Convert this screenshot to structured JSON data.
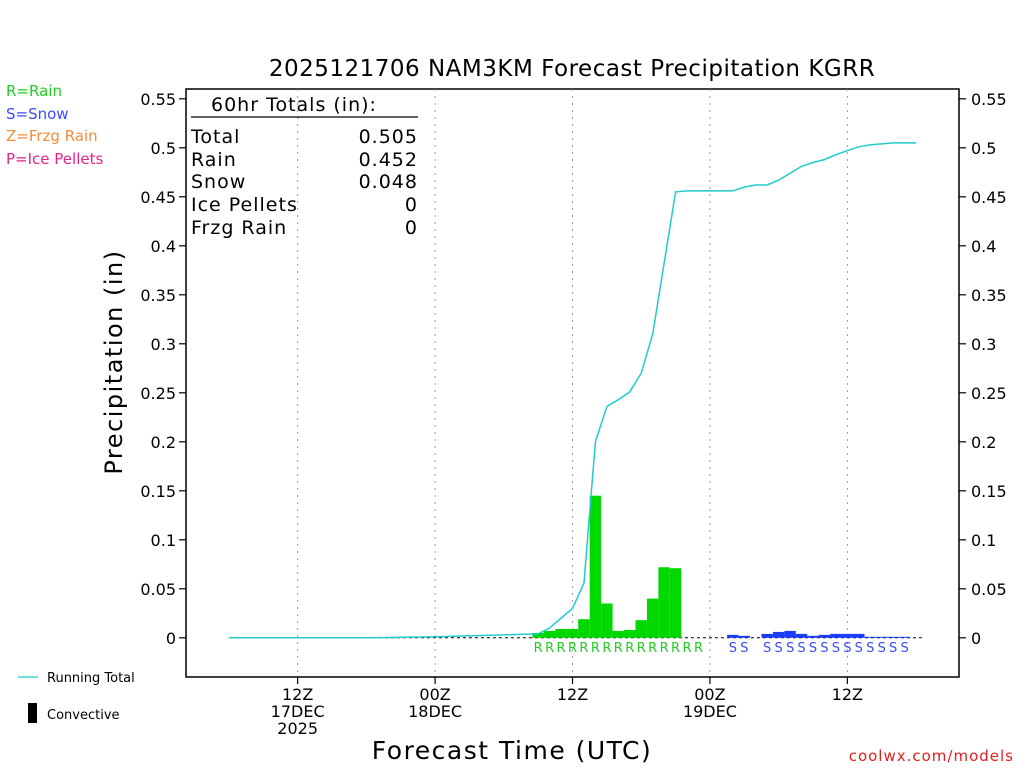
{
  "title": "2025121706 NAM3KM Forecast Precipitation KGRR",
  "legend_types": [
    {
      "label": "R=Rain",
      "color": "#22cc22"
    },
    {
      "label": "S=Snow",
      "color": "#3a4cff"
    },
    {
      "label": "Z=Frzg Rain",
      "color": "#f08c3c"
    },
    {
      "label": "P=Ice Pellets",
      "color": "#e8228c"
    }
  ],
  "totals": {
    "header": "60hr Totals (in):",
    "rows": [
      {
        "label": "Total",
        "value": "0.505"
      },
      {
        "label": "Rain",
        "value": "0.452"
      },
      {
        "label": "Snow",
        "value": "0.048"
      },
      {
        "label": "Ice Pellets",
        "value": "0"
      },
      {
        "label": "Frzg Rain",
        "value": "0"
      }
    ]
  },
  "legend_bottom": {
    "running_total": "Running Total",
    "convective": "Convective"
  },
  "credit": "coolwx.com/models",
  "colors": {
    "rain": "#00d800",
    "snow": "#1a3cff",
    "running_total": "#22cccc",
    "rain_text": "#22cc22",
    "snow_text": "#3a4cff",
    "credit": "#e02020"
  },
  "chart_data": {
    "type": "bar",
    "title": "2025121706 NAM3KM Forecast Precipitation KGRR",
    "xlabel": "Forecast Time (UTC)",
    "ylabel": "Precipitation (in)",
    "x_unit": "forecast hour",
    "xlim": [
      -3.75,
      63.75
    ],
    "ylim": [
      -0.04,
      0.56
    ],
    "y_ticks": [
      "0",
      "0.05",
      "0.1",
      "0.15",
      "0.2",
      "0.25",
      "0.3",
      "0.35",
      "0.4",
      "0.45",
      "0.5",
      "0.55"
    ],
    "y_tick_values": [
      0,
      0.05,
      0.1,
      0.15,
      0.2,
      0.25,
      0.3,
      0.35,
      0.4,
      0.45,
      0.5,
      0.55
    ],
    "x_ticks": [
      {
        "hour": 6,
        "lines": [
          "12Z",
          "17DEC",
          "2025"
        ]
      },
      {
        "hour": 18,
        "lines": [
          "00Z",
          "18DEC"
        ]
      },
      {
        "hour": 30,
        "lines": [
          "12Z"
        ]
      },
      {
        "hour": 42,
        "lines": [
          "00Z",
          "19DEC"
        ]
      },
      {
        "hour": 54,
        "lines": [
          "12Z"
        ]
      }
    ],
    "grid": "dotted vertical at x ticks",
    "series": [
      {
        "name": "Rain",
        "type": "R",
        "hours": [
          27,
          28,
          29,
          30,
          31,
          32,
          33,
          34,
          35,
          36,
          37,
          38,
          39,
          40,
          41
        ],
        "values": [
          0.005,
          0.007,
          0.009,
          0.009,
          0.019,
          0.145,
          0.035,
          0.007,
          0.008,
          0.018,
          0.04,
          0.072,
          0.071,
          0.0,
          0.0
        ]
      },
      {
        "name": "Snow",
        "type": "S",
        "hours": [
          44,
          45,
          47,
          48,
          49,
          50,
          51,
          52,
          53,
          54,
          55,
          56,
          57,
          58,
          59
        ],
        "values": [
          0.003,
          0.002,
          0.004,
          0.006,
          0.007,
          0.004,
          0.002,
          0.003,
          0.004,
          0.004,
          0.004,
          0.001,
          0.001,
          0.001,
          0.001
        ]
      },
      {
        "name": "Running Total",
        "type": "line",
        "x": [
          0,
          6,
          12,
          18,
          24,
          27,
          28,
          29,
          30,
          31,
          32,
          33,
          34,
          35,
          36,
          37,
          38,
          39,
          40,
          41,
          42,
          43,
          44,
          45,
          46,
          47,
          48,
          49,
          50,
          51,
          52,
          53,
          54,
          55,
          56,
          57,
          58,
          59,
          60
        ],
        "values": [
          0.0,
          0.0,
          0.0,
          0.001,
          0.003,
          0.004,
          0.01,
          0.02,
          0.03,
          0.056,
          0.2,
          0.236,
          0.243,
          0.251,
          0.27,
          0.31,
          0.382,
          0.455,
          0.456,
          0.456,
          0.456,
          0.456,
          0.456,
          0.46,
          0.462,
          0.462,
          0.467,
          0.474,
          0.481,
          0.485,
          0.488,
          0.493,
          0.497,
          0.501,
          0.503,
          0.504,
          0.505,
          0.505,
          0.505
        ]
      }
    ],
    "type_markers": [
      {
        "type": "R",
        "hours": [
          27,
          28,
          29,
          30,
          31,
          32,
          33,
          34,
          35,
          36,
          37,
          38,
          39,
          40,
          41
        ]
      },
      {
        "type": "S",
        "hours": [
          44,
          45,
          47,
          48,
          49,
          50,
          51,
          52,
          53,
          54,
          55,
          56,
          57,
          58,
          59
        ]
      }
    ]
  }
}
